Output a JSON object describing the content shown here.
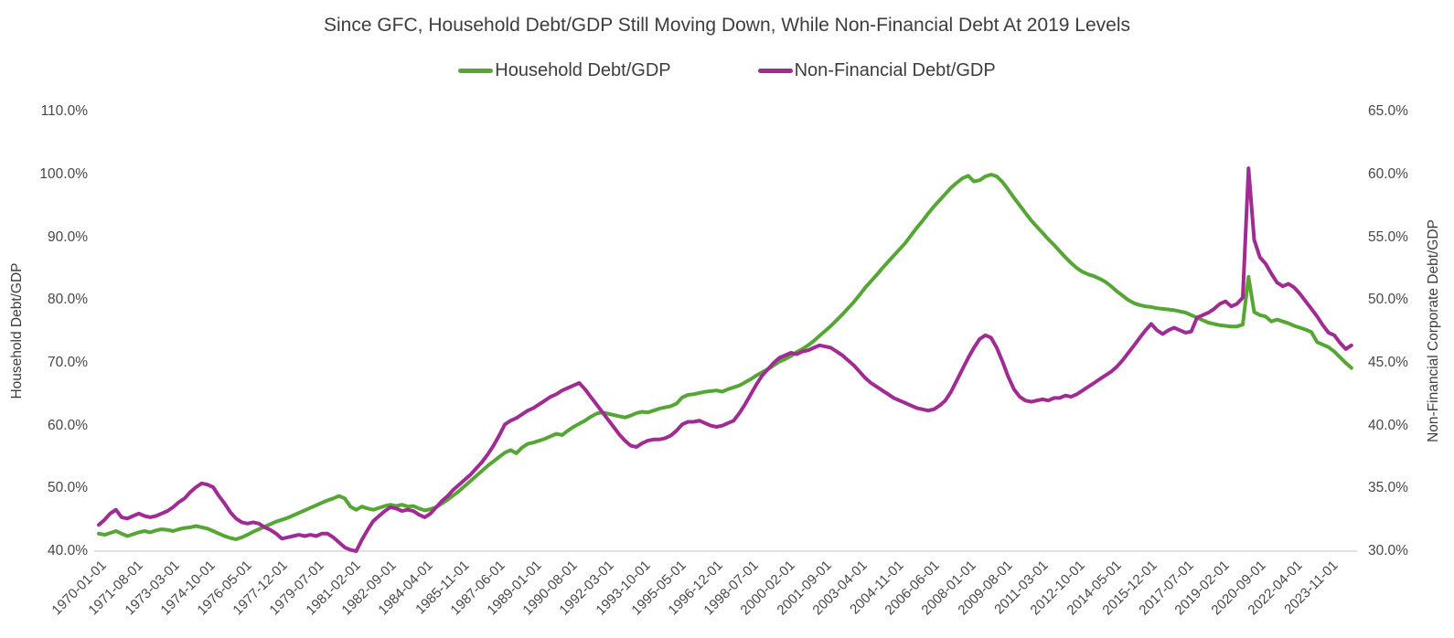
{
  "title": "Since GFC, Household Debt/GDP Still Moving Down, While Non-Financial Debt At 2019 Levels",
  "legend": {
    "household_label": "Household Debt/GDP",
    "nonfinancial_label": "Non-Financial Debt/GDP"
  },
  "colors": {
    "household_green": "#56a636",
    "nonfinancial_purple": "#a02b93",
    "axis_line": "#d6d6d6",
    "text_dark": "#3d3d3d",
    "tick_text": "#474747"
  },
  "chart_data": {
    "type": "line",
    "title": "Since GFC, Household Debt/GDP Still Moving Down, While Non-Financial Debt At 2019 Levels",
    "x_frequency": "quarterly",
    "x_start": "1970-01-01",
    "x_end": "2024-10-01",
    "grid": false,
    "legend_position": "top",
    "x_tick_labels": [
      "1970-01-01",
      "1971-08-01",
      "1973-03-01",
      "1974-10-01",
      "1976-05-01",
      "1977-12-01",
      "1979-07-01",
      "1981-02-01",
      "1982-09-01",
      "1984-04-01",
      "1985-11-01",
      "1987-06-01",
      "1989-01-01",
      "1990-08-01",
      "1992-03-01",
      "1993-10-01",
      "1995-05-01",
      "1996-12-01",
      "1998-07-01",
      "2000-02-01",
      "2001-09-01",
      "2003-04-01",
      "2004-11-01",
      "2006-06-01",
      "2008-01-01",
      "2009-08-01",
      "2011-03-01",
      "2012-10-01",
      "2014-05-01",
      "2015-12-01",
      "2017-07-01",
      "2019-02-01",
      "2020-09-01",
      "2022-04-01",
      "2023-11-01"
    ],
    "x_tick_interval_months": 19,
    "left_axis": {
      "title": "Household Debt/GDP",
      "min": 40,
      "max": 110,
      "ticks": [
        "110.0%",
        "100.0%",
        "90.0%",
        "80.0%",
        "70.0%",
        "60.0%",
        "50.0%",
        "40.0%"
      ]
    },
    "right_axis": {
      "title": "Non-Financial Corporate Debt/GDP",
      "min": 30,
      "max": 65,
      "ticks": [
        "65.0%",
        "60.0%",
        "55.0%",
        "50.0%",
        "45.0%",
        "40.0%",
        "35.0%",
        "30.0%"
      ]
    },
    "series": [
      {
        "name": "Household Debt/GDP",
        "axis": "left",
        "color": "#56a636",
        "values": [
          42.8,
          42.6,
          42.9,
          43.2,
          42.8,
          42.4,
          42.7,
          43.0,
          43.2,
          43.0,
          43.3,
          43.5,
          43.4,
          43.2,
          43.5,
          43.7,
          43.8,
          44.0,
          43.8,
          43.6,
          43.2,
          42.8,
          42.4,
          42.1,
          41.9,
          42.2,
          42.6,
          43.1,
          43.5,
          43.9,
          44.3,
          44.7,
          45.0,
          45.3,
          45.7,
          46.1,
          46.5,
          46.9,
          47.3,
          47.7,
          48.1,
          48.4,
          48.8,
          48.4,
          47.1,
          46.6,
          47.1,
          46.8,
          46.6,
          46.9,
          47.2,
          47.4,
          47.2,
          47.4,
          47.1,
          47.2,
          46.8,
          46.5,
          46.7,
          47.0,
          47.6,
          48.2,
          48.9,
          49.6,
          50.4,
          51.2,
          52.0,
          52.8,
          53.6,
          54.3,
          55.0,
          55.7,
          56.1,
          55.6,
          56.5,
          57.1,
          57.3,
          57.6,
          57.9,
          58.3,
          58.7,
          58.5,
          59.2,
          59.8,
          60.3,
          60.8,
          61.4,
          61.9,
          62.1,
          61.9,
          61.7,
          61.5,
          61.3,
          61.6,
          62.0,
          62.2,
          62.1,
          62.4,
          62.7,
          62.9,
          63.1,
          63.5,
          64.5,
          64.9,
          65.0,
          65.2,
          65.4,
          65.5,
          65.6,
          65.4,
          65.8,
          66.1,
          66.4,
          66.9,
          67.4,
          68.0,
          68.5,
          69.0,
          69.6,
          70.2,
          70.6,
          71.1,
          71.7,
          72.2,
          72.8,
          73.5,
          74.3,
          75.1,
          75.9,
          76.8,
          77.7,
          78.7,
          79.7,
          80.8,
          82.0,
          83.0,
          84.0,
          85.1,
          86.1,
          87.1,
          88.1,
          89.1,
          90.3,
          91.5,
          92.6,
          93.8,
          94.9,
          95.9,
          96.9,
          97.9,
          98.7,
          99.4,
          99.8,
          98.9,
          99.1,
          99.7,
          100.0,
          99.7,
          98.8,
          97.6,
          96.3,
          95.1,
          93.9,
          92.7,
          91.7,
          90.7,
          89.7,
          88.8,
          87.8,
          86.8,
          85.9,
          85.1,
          84.5,
          84.1,
          83.8,
          83.4,
          82.9,
          82.2,
          81.4,
          80.7,
          80.0,
          79.5,
          79.2,
          79.0,
          78.9,
          78.7,
          78.6,
          78.5,
          78.4,
          78.2,
          78.0,
          77.6,
          77.2,
          76.8,
          76.4,
          76.2,
          76.0,
          75.9,
          75.8,
          75.8,
          76.1,
          83.7,
          78.1,
          77.6,
          77.4,
          76.6,
          76.9,
          76.6,
          76.3,
          75.9,
          75.6,
          75.3,
          74.9,
          73.3,
          72.9,
          72.5,
          71.8,
          70.9,
          70.0,
          69.2
        ]
      },
      {
        "name": "Non-Financial Debt/GDP",
        "axis": "right",
        "color": "#a02b93",
        "values": [
          32.1,
          32.5,
          33.0,
          33.3,
          32.7,
          32.6,
          32.8,
          33.0,
          32.8,
          32.7,
          32.8,
          33.0,
          33.2,
          33.5,
          33.9,
          34.2,
          34.7,
          35.1,
          35.4,
          35.3,
          35.1,
          34.4,
          33.8,
          33.1,
          32.6,
          32.3,
          32.2,
          32.3,
          32.2,
          31.9,
          31.7,
          31.4,
          31.0,
          31.1,
          31.2,
          31.3,
          31.2,
          31.3,
          31.2,
          31.4,
          31.4,
          31.1,
          30.7,
          30.3,
          30.1,
          30.0,
          30.9,
          31.7,
          32.4,
          32.8,
          33.2,
          33.5,
          33.4,
          33.2,
          33.3,
          33.2,
          32.9,
          32.7,
          33.0,
          33.5,
          34.0,
          34.4,
          34.9,
          35.3,
          35.7,
          36.1,
          36.6,
          37.1,
          37.7,
          38.4,
          39.2,
          40.1,
          40.4,
          40.6,
          40.9,
          41.2,
          41.4,
          41.7,
          42.0,
          42.3,
          42.5,
          42.8,
          43.0,
          43.2,
          43.4,
          42.9,
          42.3,
          41.7,
          41.1,
          40.5,
          39.9,
          39.3,
          38.8,
          38.4,
          38.3,
          38.6,
          38.8,
          38.9,
          38.9,
          39.0,
          39.2,
          39.6,
          40.1,
          40.3,
          40.3,
          40.4,
          40.2,
          40.0,
          39.9,
          40.0,
          40.2,
          40.4,
          41.0,
          41.7,
          42.5,
          43.3,
          44.0,
          44.5,
          45.0,
          45.4,
          45.6,
          45.8,
          45.7,
          45.9,
          46.0,
          46.2,
          46.4,
          46.3,
          46.2,
          45.9,
          45.6,
          45.2,
          44.8,
          44.3,
          43.8,
          43.4,
          43.1,
          42.8,
          42.5,
          42.2,
          42.0,
          41.8,
          41.6,
          41.4,
          41.3,
          41.2,
          41.3,
          41.6,
          42.0,
          42.7,
          43.6,
          44.5,
          45.4,
          46.2,
          46.9,
          47.2,
          47.0,
          46.2,
          45.1,
          43.9,
          42.9,
          42.3,
          42.0,
          41.9,
          42.0,
          42.1,
          42.0,
          42.2,
          42.2,
          42.4,
          42.3,
          42.5,
          42.8,
          43.1,
          43.4,
          43.7,
          44.0,
          44.3,
          44.7,
          45.2,
          45.8,
          46.4,
          47.0,
          47.6,
          48.1,
          47.6,
          47.3,
          47.6,
          47.8,
          47.6,
          47.4,
          47.5,
          48.6,
          48.8,
          49.0,
          49.3,
          49.7,
          49.9,
          49.5,
          49.7,
          50.2,
          60.5,
          54.8,
          53.4,
          52.9,
          52.1,
          51.4,
          51.1,
          51.3,
          51.0,
          50.5,
          49.9,
          49.3,
          48.7,
          48.0,
          47.4,
          47.2,
          46.6,
          46.1,
          46.4
        ]
      }
    ]
  }
}
